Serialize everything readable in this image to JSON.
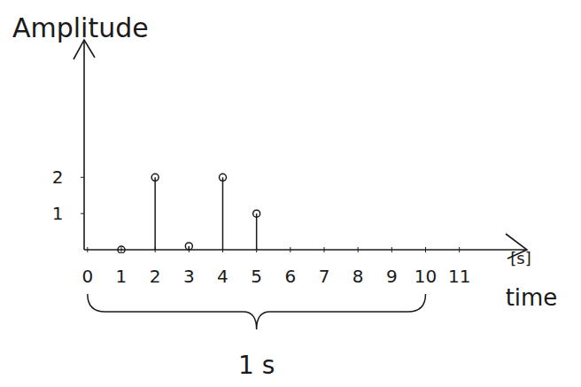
{
  "chart_data": {
    "type": "stem",
    "y_label": "Amplitude",
    "x_label": "time",
    "x_unit": "[s]",
    "x": [
      1,
      2,
      3,
      4,
      5
    ],
    "values": [
      0,
      2,
      0.1,
      2,
      1
    ],
    "color": "#1a1a1a",
    "marker": "circle",
    "xlim": [
      -0.1,
      13
    ],
    "xticks": [
      0,
      1,
      2,
      3,
      4,
      5,
      6,
      7,
      8,
      9,
      10,
      11
    ],
    "ylim": [
      0,
      5.8
    ],
    "yticks": [
      1,
      2
    ],
    "grid": false,
    "annotations": [
      {
        "text": "1 s",
        "x_from": 0,
        "x_to": 10
      }
    ]
  }
}
